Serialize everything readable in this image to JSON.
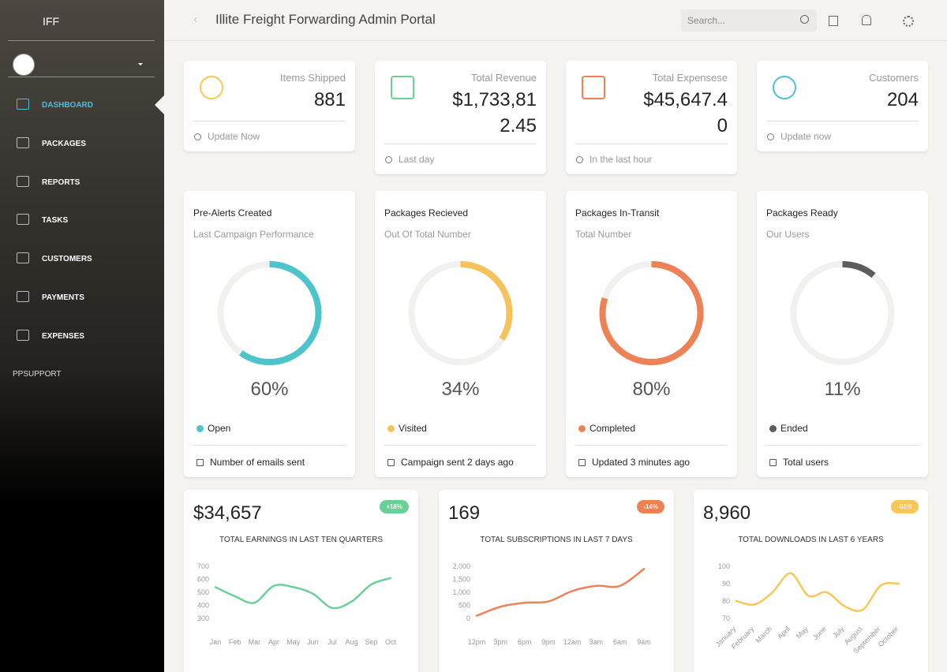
{
  "sidebar": {
    "brand": "IFF",
    "nav": [
      "DASHBOARD",
      "PACKAGES",
      "REPORTS",
      "TASKS",
      "CUSTOMERS",
      "PAYMENTS",
      "EXPENSES"
    ],
    "support": "PPSUPPORT"
  },
  "header": {
    "title": "Illite Freight Forwarding Admin Portal",
    "search_placeholder": "Search..."
  },
  "stats": [
    {
      "label": "Items Shipped",
      "value": "881",
      "footer": "Update Now",
      "color": "#fbc658"
    },
    {
      "label": "Total Revenue",
      "value": "$1,733,812.45",
      "footer": "Last day",
      "color": "#6bd098"
    },
    {
      "label": "Total Expensese",
      "value": "$45,647.40",
      "footer": "In the last hour",
      "color": "#ef8157"
    },
    {
      "label": "Customers",
      "value": "204",
      "footer": "Update now",
      "color": "#51bcda"
    }
  ],
  "gauges": [
    {
      "title": "Pre-Alerts Created",
      "subtitle": "Last Campaign Performance",
      "value": 60,
      "value_label": "60%",
      "legend": "Open",
      "footer": "Number of emails sent",
      "color": "#4cc4cc"
    },
    {
      "title": "Packages Recieved",
      "subtitle": "Out Of Total Number",
      "value": 34,
      "value_label": "34%",
      "legend": "Visited",
      "footer": "Campaign sent 2 days ago",
      "color": "#f5c25b"
    },
    {
      "title": "Packages In-Transit",
      "subtitle": "Total Number",
      "value": 80,
      "value_label": "80%",
      "legend": "Completed",
      "footer": "Updated 3 minutes ago",
      "color": "#ef8157"
    },
    {
      "title": "Packages Ready",
      "subtitle": "Our Users",
      "value": 11,
      "value_label": "11%",
      "legend": "Ended",
      "footer": "Total users",
      "color": "#5c5c5c"
    }
  ],
  "chart_data": [
    {
      "type": "line",
      "headline": "$34,657",
      "badge": "+18%",
      "badge_color": "#6bd098",
      "title": "TOTAL EARNINGS IN LAST TEN QUARTERS",
      "categories": [
        "Jan",
        "Feb",
        "Mar",
        "Apr",
        "May",
        "Jun",
        "Jul",
        "Aug",
        "Sep",
        "Oct"
      ],
      "values": [
        540,
        470,
        420,
        550,
        540,
        490,
        380,
        430,
        560,
        610
      ],
      "ylim": [
        300,
        700
      ],
      "yticks": [
        300,
        400,
        500,
        600,
        700
      ],
      "color": "#6bd098"
    },
    {
      "type": "line",
      "headline": "169",
      "badge": "-14%",
      "badge_color": "#ef8157",
      "title": "TOTAL SUBSCRIPTIONS IN LAST 7 DAYS",
      "categories": [
        "12pm",
        "3pm",
        "6pm",
        "9pm",
        "12am",
        "3am",
        "6am",
        "9am"
      ],
      "values": [
        100,
        450,
        600,
        650,
        1050,
        1250,
        1250,
        1900
      ],
      "ylim": [
        0,
        2000
      ],
      "yticks": [
        0,
        500,
        {
          "value": 1000,
          "label": "1,000"
        },
        {
          "value": 1500,
          "label": "1,500"
        },
        {
          "value": 2000,
          "label": "2,000"
        }
      ],
      "color": "#ef8157"
    },
    {
      "type": "line",
      "headline": "8,960",
      "badge": "-51%",
      "badge_color": "#fbc658",
      "title": "TOTAL DOWNLOADS IN LAST 6 YEARS",
      "categories": [
        "January",
        "February",
        "March",
        "April",
        "May",
        "June",
        "July",
        "August",
        "September",
        "October"
      ],
      "values": [
        80,
        78,
        85,
        96,
        83,
        85,
        77,
        75,
        89,
        90
      ],
      "ylim": [
        70,
        100
      ],
      "yticks": [
        70,
        80,
        90,
        100
      ],
      "color": "#fbc658",
      "rotate_labels": true
    }
  ]
}
